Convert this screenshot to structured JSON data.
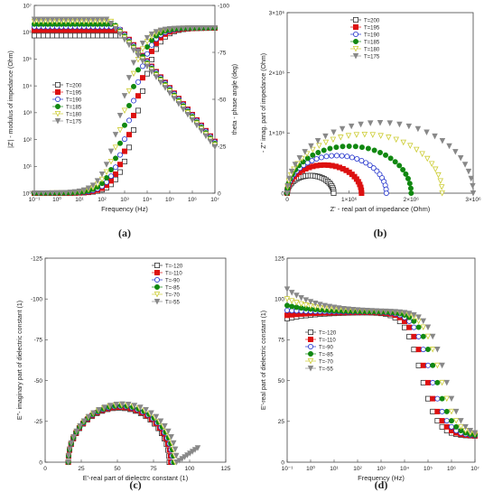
{
  "panels": [
    {
      "label": "(a)",
      "type": "scatter",
      "xlabel": "Frequency (Hz)",
      "ylabel": "|Z'| - modulus of impedance (Ohm)",
      "y2label": "theta - phase angle (deg)",
      "x_scale": "log",
      "xlim": [
        0.1,
        10000000
      ],
      "y_scale": "log",
      "ylim": [
        1,
        10000000
      ],
      "y2lim": [
        0,
        -100
      ],
      "xticks": [
        "10⁻¹",
        "10⁰",
        "10¹",
        "10²",
        "10³",
        "10⁴",
        "10⁵",
        "10⁶",
        "10⁷"
      ],
      "yticks": [
        "10⁰",
        "10¹",
        "10²",
        "10³",
        "10⁴",
        "10⁵",
        "10⁶",
        "10⁷"
      ],
      "y2ticks": [
        "0",
        "-25",
        "-50",
        "-75",
        "-100"
      ],
      "legend_position": "middle-left",
      "series": [
        {
          "name": "T=200",
          "color": "#333333",
          "marker": "square-open",
          "modulus_plateau": 750000,
          "crossover_logf": 3.6
        },
        {
          "name": "T=195",
          "color": "#dd1111",
          "marker": "square",
          "modulus_plateau": 1200000,
          "crossover_logf": 3.45
        },
        {
          "name": "T=190",
          "color": "#2233cc",
          "marker": "circle-open",
          "modulus_plateau": 1600000,
          "crossover_logf": 3.3
        },
        {
          "name": "T=185",
          "color": "#118811",
          "marker": "circle",
          "modulus_plateau": 2000000,
          "crossover_logf": 3.15
        },
        {
          "name": "T=180",
          "color": "#cccc33",
          "marker": "triangle-down-open",
          "modulus_plateau": 2500000,
          "crossover_logf": 3.0
        },
        {
          "name": "T=175",
          "color": "#888888",
          "marker": "triangle-down",
          "modulus_plateau": 3000000,
          "crossover_logf": 2.85
        }
      ]
    },
    {
      "label": "(b)",
      "type": "scatter",
      "xlabel": "Z' - real part of impedance (Ohm)",
      "ylabel": "- Z'' imag. part of impedance (Ohm)",
      "xlim": [
        0,
        3000000
      ],
      "ylim": [
        0,
        3000000
      ],
      "xticks": [
        "0",
        "1×10⁶",
        "2×10⁶",
        "3×10⁶"
      ],
      "yticks": [
        "0",
        "1×10⁶",
        "2×10⁶",
        "3×10⁶"
      ],
      "legend_position": "top-right",
      "series": [
        {
          "name": "T=200",
          "color": "#333333",
          "marker": "square-open",
          "diameter": 750000
        },
        {
          "name": "T=195",
          "color": "#dd1111",
          "marker": "square",
          "diameter": 1200000
        },
        {
          "name": "T=190",
          "color": "#2233cc",
          "marker": "circle-open",
          "diameter": 1600000
        },
        {
          "name": "T=185",
          "color": "#118811",
          "marker": "circle",
          "diameter": 2000000
        },
        {
          "name": "T=180",
          "color": "#cccc33",
          "marker": "triangle-down-open",
          "diameter": 2500000
        },
        {
          "name": "T=175",
          "color": "#888888",
          "marker": "triangle-down",
          "diameter": 3000000
        }
      ]
    },
    {
      "label": "(c)",
      "type": "scatter",
      "xlabel": "E'-real part of dielectrc constant (1)",
      "ylabel": "E''- imaginary part of dielectric constant (1)",
      "xlim": [
        0,
        125
      ],
      "ylim": [
        0,
        -125
      ],
      "xticks": [
        "0",
        "25",
        "50",
        "75",
        "100",
        "125"
      ],
      "yticks": [
        "0",
        "-25",
        "-50",
        "-75",
        "-100",
        "-125"
      ],
      "legend_position": "top-right",
      "series": [
        {
          "name": "T=-120",
          "color": "#333333",
          "marker": "square-open",
          "eps_inf": 16,
          "eps_s": 86
        },
        {
          "name": "T=-110",
          "color": "#dd1111",
          "marker": "square",
          "eps_inf": 16,
          "eps_s": 87
        },
        {
          "name": "T=-90",
          "color": "#2233cc",
          "marker": "circle-open",
          "eps_inf": 16,
          "eps_s": 88
        },
        {
          "name": "T=-85",
          "color": "#118811",
          "marker": "circle",
          "eps_inf": 16,
          "eps_s": 89
        },
        {
          "name": "T=-70",
          "color": "#cccc33",
          "marker": "triangle-down-open",
          "eps_inf": 16,
          "eps_s": 90
        },
        {
          "name": "T=-55",
          "color": "#888888",
          "marker": "triangle-down",
          "eps_inf": 16,
          "eps_s": 91
        }
      ]
    },
    {
      "label": "(d)",
      "type": "scatter",
      "xlabel": "Frequency (Hz)",
      "ylabel": "E'-real part of dielectric constant (1)",
      "x_scale": "log",
      "xlim": [
        0.1,
        10000000
      ],
      "ylim": [
        0,
        125
      ],
      "xticks": [
        "10⁻¹",
        "10⁰",
        "10¹",
        "10²",
        "10³",
        "10⁴",
        "10⁵",
        "10⁶",
        "10⁷"
      ],
      "yticks": [
        "0",
        "25",
        "50",
        "75",
        "100",
        "125"
      ],
      "legend_position": "middle-left",
      "series": [
        {
          "name": "T=-120",
          "color": "#333333",
          "marker": "square-open",
          "low_f_value": 88,
          "relax_logf": 4.7
        },
        {
          "name": "T=-110",
          "color": "#dd1111",
          "marker": "square",
          "low_f_value": 90,
          "relax_logf": 4.9
        },
        {
          "name": "T=-90",
          "color": "#2233cc",
          "marker": "circle-open",
          "low_f_value": 93,
          "relax_logf": 5.1
        },
        {
          "name": "T=-85",
          "color": "#118811",
          "marker": "circle",
          "low_f_value": 96,
          "relax_logf": 5.3
        },
        {
          "name": "T=-70",
          "color": "#cccc33",
          "marker": "triangle-down-open",
          "low_f_value": 100,
          "relax_logf": 5.5
        },
        {
          "name": "T=-55",
          "color": "#888888",
          "marker": "triangle-down",
          "low_f_value": 106,
          "relax_logf": 5.7
        }
      ]
    }
  ]
}
